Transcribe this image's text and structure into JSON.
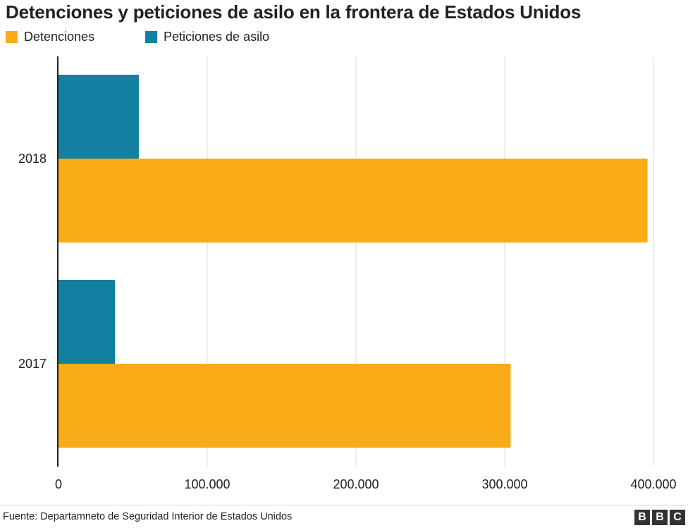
{
  "chart_data": {
    "type": "bar",
    "orientation": "horizontal",
    "title": "Detenciones y peticiones de asilo en la frontera de Estados Unidos",
    "categories": [
      "2018",
      "2017"
    ],
    "series": [
      {
        "name": "Detenciones",
        "color": "#faab18",
        "values": [
          396000,
          304000
        ]
      },
      {
        "name": "Peticiones de asilo",
        "color": "#1380a1",
        "values": [
          54000,
          38000
        ]
      }
    ],
    "x_ticks": [
      0,
      100000,
      200000,
      300000,
      400000
    ],
    "x_tick_labels": [
      "0",
      "100.000",
      "200.000",
      "300.000",
      "400.000"
    ],
    "xlim": [
      0,
      400000
    ],
    "grid": "vertical",
    "legend_position": "top-left"
  },
  "footer": {
    "source": "Fuente: Departamneto de Seguridad Interior de Estados Unidos",
    "logo_letters": [
      "B",
      "B",
      "C"
    ]
  }
}
